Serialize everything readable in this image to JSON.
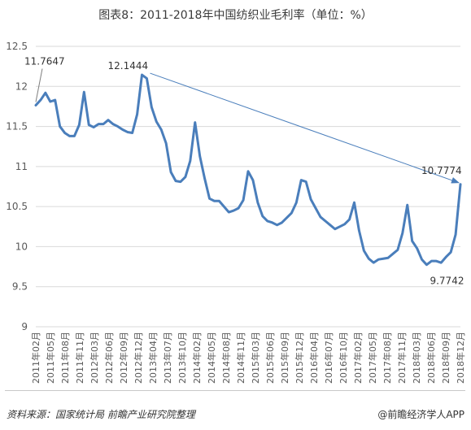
{
  "title": "图表8：2011-2018年中国纺织业毛利率（单位：%）",
  "source": "资料来源：国家统计局 前瞻产业研究院整理",
  "brand": "@前瞻经济学人APP",
  "chart_data": {
    "type": "line",
    "title": "图表8：2011-2018年中国纺织业毛利率（单位：%）",
    "ylabel": "",
    "xlabel": "",
    "ylim": [
      9,
      12.5
    ],
    "yticks": [
      "12.5",
      "12",
      "11.5",
      "11",
      "10.5",
      "10",
      "9.5",
      "9"
    ],
    "ytick_values": [
      12.5,
      12,
      11.5,
      11,
      10.5,
      10,
      9.5,
      9
    ],
    "xtick_labels": [
      "2011年02月",
      "2011年05月",
      "2011年08月",
      "2011年11月",
      "2012年03月",
      "2012年06月",
      "2012年09月",
      "2012年12月",
      "2013年04月",
      "2013年07月",
      "2013年10月",
      "2014年02月",
      "2014年05月",
      "2014年08月",
      "2014年11月",
      "2015年03月",
      "2015年06月",
      "2015年09月",
      "2015年12月",
      "2016年04月",
      "2016年07月",
      "2016年10月",
      "2017年02月",
      "2017年05月",
      "2017年08月",
      "2017年11月",
      "2018年03月",
      "2018年06月",
      "2018年09月",
      "2018年12月"
    ],
    "series": [
      {
        "name": "",
        "color": "#4a7ebb",
        "values": [
          11.7647,
          11.83,
          11.92,
          11.81,
          11.83,
          11.5,
          11.42,
          11.38,
          11.38,
          11.52,
          11.93,
          11.52,
          11.49,
          11.53,
          11.53,
          11.58,
          11.53,
          11.5,
          11.46,
          11.43,
          11.42,
          11.65,
          12.1444,
          12.1,
          11.74,
          11.56,
          11.46,
          11.29,
          10.93,
          10.82,
          10.81,
          10.87,
          11.07,
          11.55,
          11.13,
          10.85,
          10.6,
          10.57,
          10.57,
          10.5,
          10.43,
          10.45,
          10.48,
          10.58,
          10.94,
          10.83,
          10.55,
          10.38,
          10.32,
          10.3,
          10.27,
          10.3,
          10.36,
          10.42,
          10.55,
          10.83,
          10.81,
          10.59,
          10.48,
          10.37,
          10.32,
          10.27,
          10.22,
          10.25,
          10.28,
          10.34,
          10.55,
          10.2,
          9.95,
          9.85,
          9.8,
          9.84,
          9.85,
          9.86,
          9.91,
          9.96,
          10.17,
          10.52,
          10.07,
          9.98,
          9.84,
          9.7742,
          9.82,
          9.82,
          9.8,
          9.87,
          9.93,
          10.15,
          10.7774
        ]
      }
    ],
    "annotations": [
      {
        "text": "11.7647",
        "index": 0,
        "value": 11.7647
      },
      {
        "text": "12.1444",
        "index": 22,
        "value": 12.1444
      },
      {
        "text": "9.7742",
        "index": 81,
        "value": 9.7742
      },
      {
        "text": "10.7774",
        "index": 88,
        "value": 10.7774
      }
    ],
    "trend_arrow": {
      "from_index": 22,
      "from_value": 12.1444,
      "to_index": 88,
      "to_value": 10.7774,
      "color": "#4a7ebb"
    },
    "grid": "horizontal",
    "legend": "none"
  }
}
